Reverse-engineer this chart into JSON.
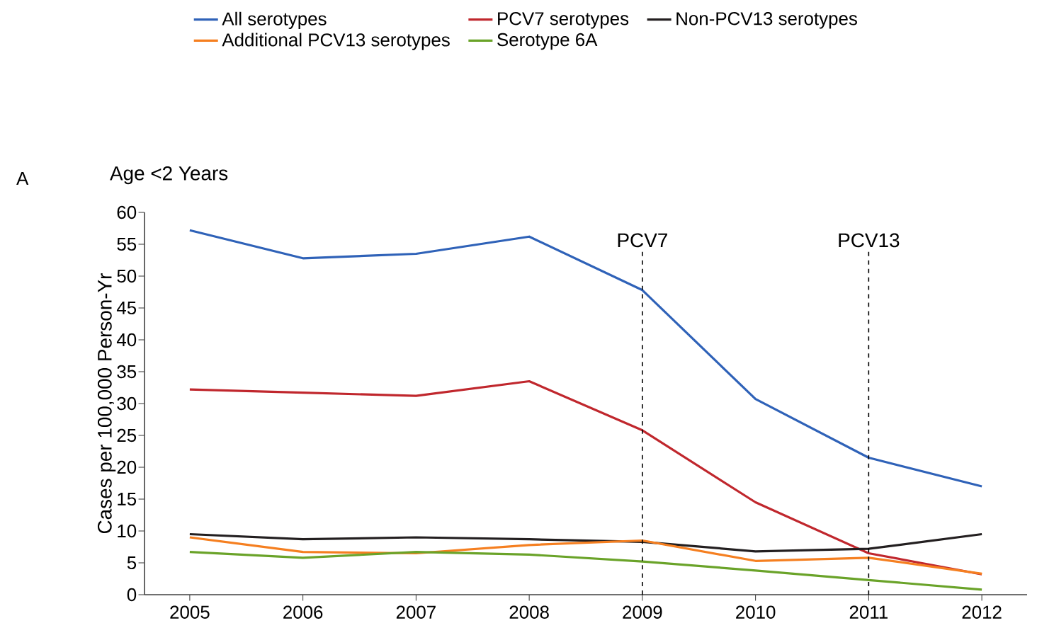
{
  "chart_data": {
    "type": "line",
    "title": "Age <2 Years",
    "ylabel": "Cases per 100,000 Person-Yr",
    "annotations": [
      "A"
    ],
    "x": [
      2005,
      2006,
      2007,
      2008,
      2009,
      2010,
      2011,
      2012
    ],
    "xlim": [
      2004.6,
      2012.4
    ],
    "xticks": [
      2005,
      2006,
      2007,
      2008,
      2009,
      2010,
      2011,
      2012
    ],
    "ylim": [
      0,
      60
    ],
    "yticks": [
      0,
      5,
      10,
      15,
      20,
      25,
      30,
      35,
      40,
      45,
      50,
      55,
      60
    ],
    "series": [
      {
        "name": "All serotypes",
        "color": "#2f62b8",
        "values": [
          57.2,
          52.8,
          53.5,
          56.2,
          47.8,
          30.7,
          21.5,
          17
        ]
      },
      {
        "name": "PCV7 serotypes",
        "color": "#c0272d",
        "values": [
          32.2,
          31.7,
          31.2,
          33.5,
          25.8,
          14.5,
          6.5,
          3.2
        ]
      },
      {
        "name": "Non-PCV13 serotypes",
        "color": "#231f20",
        "values": [
          9.5,
          8.7,
          9,
          8.7,
          8.3,
          6.8,
          7.2,
          9.5
        ]
      },
      {
        "name": "Additional PCV13 serotypes",
        "color": "#f57f20",
        "values": [
          9,
          6.7,
          6.5,
          7.8,
          8.5,
          5.3,
          5.8,
          3.3
        ]
      },
      {
        "name": "Serotype 6A",
        "color": "#6aa329",
        "values": [
          6.7,
          5.8,
          6.7,
          6.3,
          5.2,
          3.8,
          2.3,
          0.8
        ]
      }
    ],
    "ref_lines": [
      {
        "axis": "x",
        "value": 2009,
        "label": "PCV7",
        "line_style": "dashed"
      },
      {
        "axis": "x",
        "value": 2011,
        "label": "PCV13",
        "line_style": "dashed"
      }
    ],
    "grid": false,
    "legend": "top"
  }
}
